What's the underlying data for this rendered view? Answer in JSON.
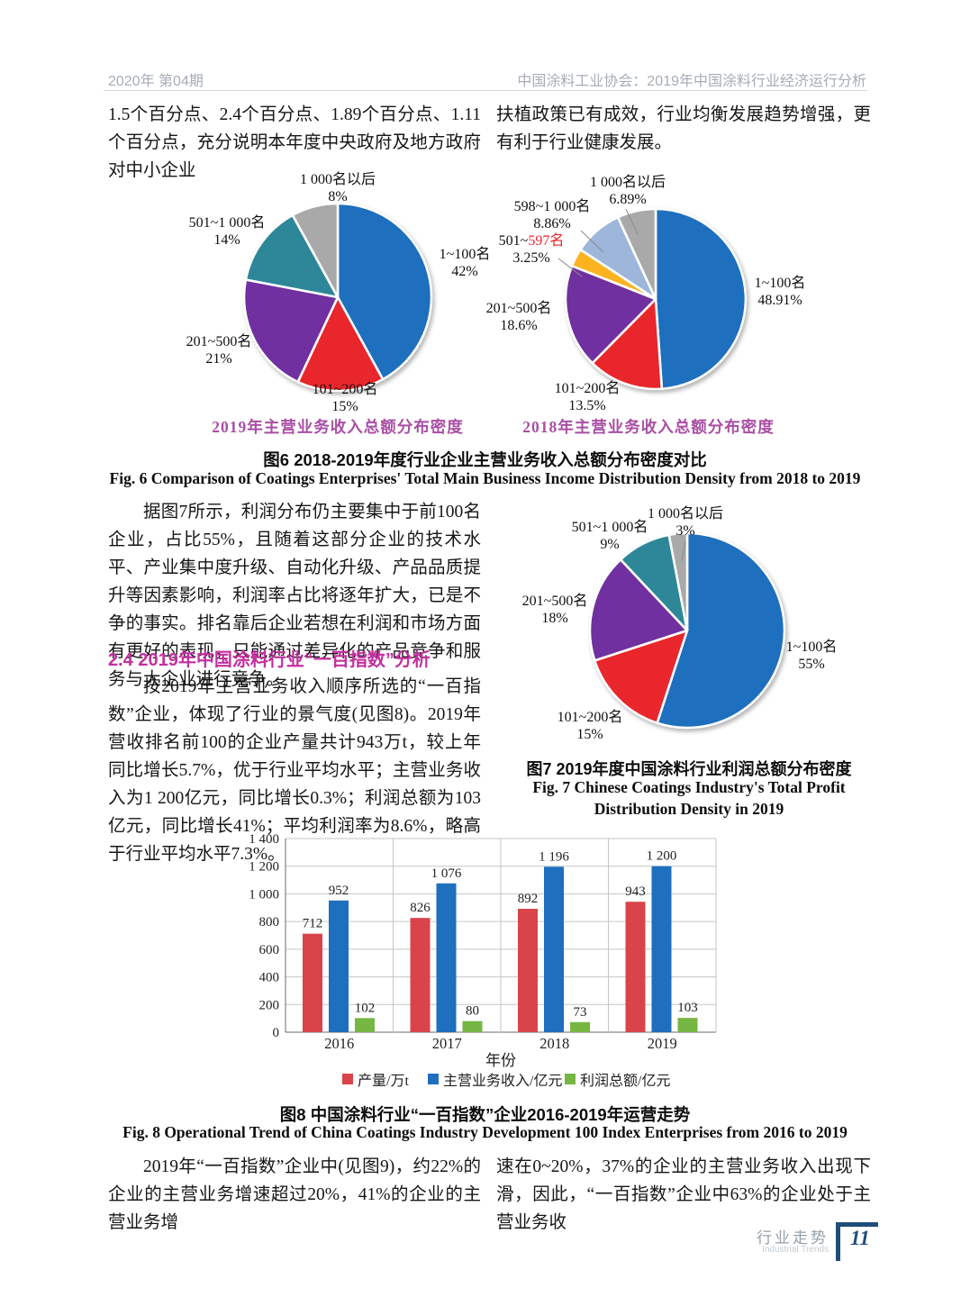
{
  "header": {
    "left": "2020年 第04期",
    "right": "中国涂料工业协会：2019年中国涂料行业经济运行分析"
  },
  "intro": {
    "left": "1.5个百分点、2.4个百分点、1.89个百分点、1.11个百分点，充分说明本年度中央政府及地方政府对中小企业",
    "right": "扶植政策已有成效，行业均衡发展趋势增强，更有利于行业健康发展。"
  },
  "main": {
    "para1": "据图7所示，利润分布仍主要集中于前100名企业，占比55%，且随着这部分企业的技术水平、产业集中度升级、自动化升级、产品品质提升等因素影响，利润率占比将逐年扩大，已是不争的事实。排名靠后企业若想在利润和市场方面有更好的表现，只能通过差异化的产品竞争和服务与大企业进行竞争。",
    "heading": "2.4  2019年中国涂料行业“一百指数”分析",
    "para2": "按2019年主营业务收入顺序所选的“一百指数”企业，体现了行业的景气度(见图8)。2019年营收排名前100的企业产量共计943万t，较上年同比增长5.7%，优于行业平均水平；主营业务收入为1 200亿元，同比增长0.3%；利润总额为103亿元，同比增长41%；平均利润率为8.6%，略高于行业平均水平7.3%。"
  },
  "figure6": {
    "caption_zh": "图6  2018-2019年度行业企业主营业务收入总额分布密度对比",
    "caption_en": "Fig. 6  Comparison of Coatings Enterprises' Total Main Business Income Distribution Density from 2018 to 2019"
  },
  "figure7": {
    "caption_zh": "图7  2019年度中国涂料行业利润总额分布密度",
    "caption_en_line1": "Fig. 7  Chinese Coatings Industry's Total Profit",
    "caption_en_line2": "Distribution Density in 2019"
  },
  "figure8": {
    "caption_zh": "图8  中国涂料行业“一百指数”企业2016-2019年运营走势",
    "caption_en": "Fig. 8  Operational Trend of China Coatings Industry Development 100 Index Enterprises from 2016 to 2019"
  },
  "closing": {
    "left": "2019年“一百指数”企业中(见图9)，约22%的企业的主营业务增速超过20%，41%的企业的主营业务增",
    "right": "速在0~20%，37%的企业的主营业务收入出现下滑，因此，“一百指数”企业中63%的企业处于主营业务收"
  },
  "footer": {
    "section_zh": "行业走势",
    "section_en": "Industrial Trends",
    "page_number": "11"
  },
  "colors": {
    "accent_heading": "#c42f9f",
    "pie_caption": "#a94fa4",
    "page_number": "#1f4e79",
    "header_gray": "#a6adb5"
  },
  "chart_data": [
    {
      "type": "pie",
      "title": "2019年主营业务收入总额分布密度",
      "labels": [
        "1~100名",
        "101~200名",
        "201~500名",
        "501~1 000名",
        "1 000名以后"
      ],
      "values": [
        42,
        15,
        21,
        14,
        8
      ],
      "display": [
        "42%",
        "15%",
        "21%",
        "14%",
        "8%"
      ],
      "colors": [
        "#1e6fbe",
        "#e8262b",
        "#7030a0",
        "#2e8799",
        "#a9a9a9"
      ]
    },
    {
      "type": "pie",
      "title": "2018年主营业务收入总额分布密度",
      "labels": [
        "1~100名",
        "101~200名",
        "201~500名",
        "501~597名",
        "598~1 000名",
        "1 000名以后"
      ],
      "values": [
        48.91,
        13.5,
        18.6,
        3.25,
        8.86,
        6.89
      ],
      "display": [
        "48.91%",
        "13.5%",
        "18.6%",
        "3.25%",
        "8.86%",
        "6.89%"
      ],
      "colors": [
        "#1e6fbe",
        "#e8262b",
        "#7030a0",
        "#fbb321",
        "#9db6da",
        "#a9a9a9"
      ],
      "label_red_suffix": [
        "",
        "",
        "",
        "597名",
        "",
        ""
      ]
    },
    {
      "type": "pie",
      "title": "2019年度中国涂料行业利润总额分布密度",
      "labels": [
        "1~100名",
        "101~200名",
        "201~500名",
        "501~1 000名",
        "1 000名以后"
      ],
      "values": [
        55,
        15,
        18,
        9,
        3
      ],
      "display": [
        "55%",
        "15%",
        "18%",
        "9%",
        "3%"
      ],
      "colors": [
        "#1e6fbe",
        "#e8262b",
        "#7030a0",
        "#2e8799",
        "#a9a9a9"
      ]
    },
    {
      "type": "bar",
      "categories": [
        "2016",
        "2017",
        "2018",
        "2019"
      ],
      "series": [
        {
          "name": "产量/万t",
          "color": "#d9444a",
          "values": [
            712,
            826,
            892,
            943
          ]
        },
        {
          "name": "主营业务收入/亿元",
          "color": "#1e6fbe",
          "values": [
            952,
            1076,
            1196,
            1200
          ]
        },
        {
          "name": "利润总额/亿元",
          "color": "#76b643",
          "values": [
            102,
            80,
            73,
            103
          ]
        }
      ],
      "xlabel": "年份",
      "ylim": [
        0,
        1400
      ],
      "ytick_step": 200,
      "grid": true,
      "legend_position": "bottom"
    }
  ]
}
